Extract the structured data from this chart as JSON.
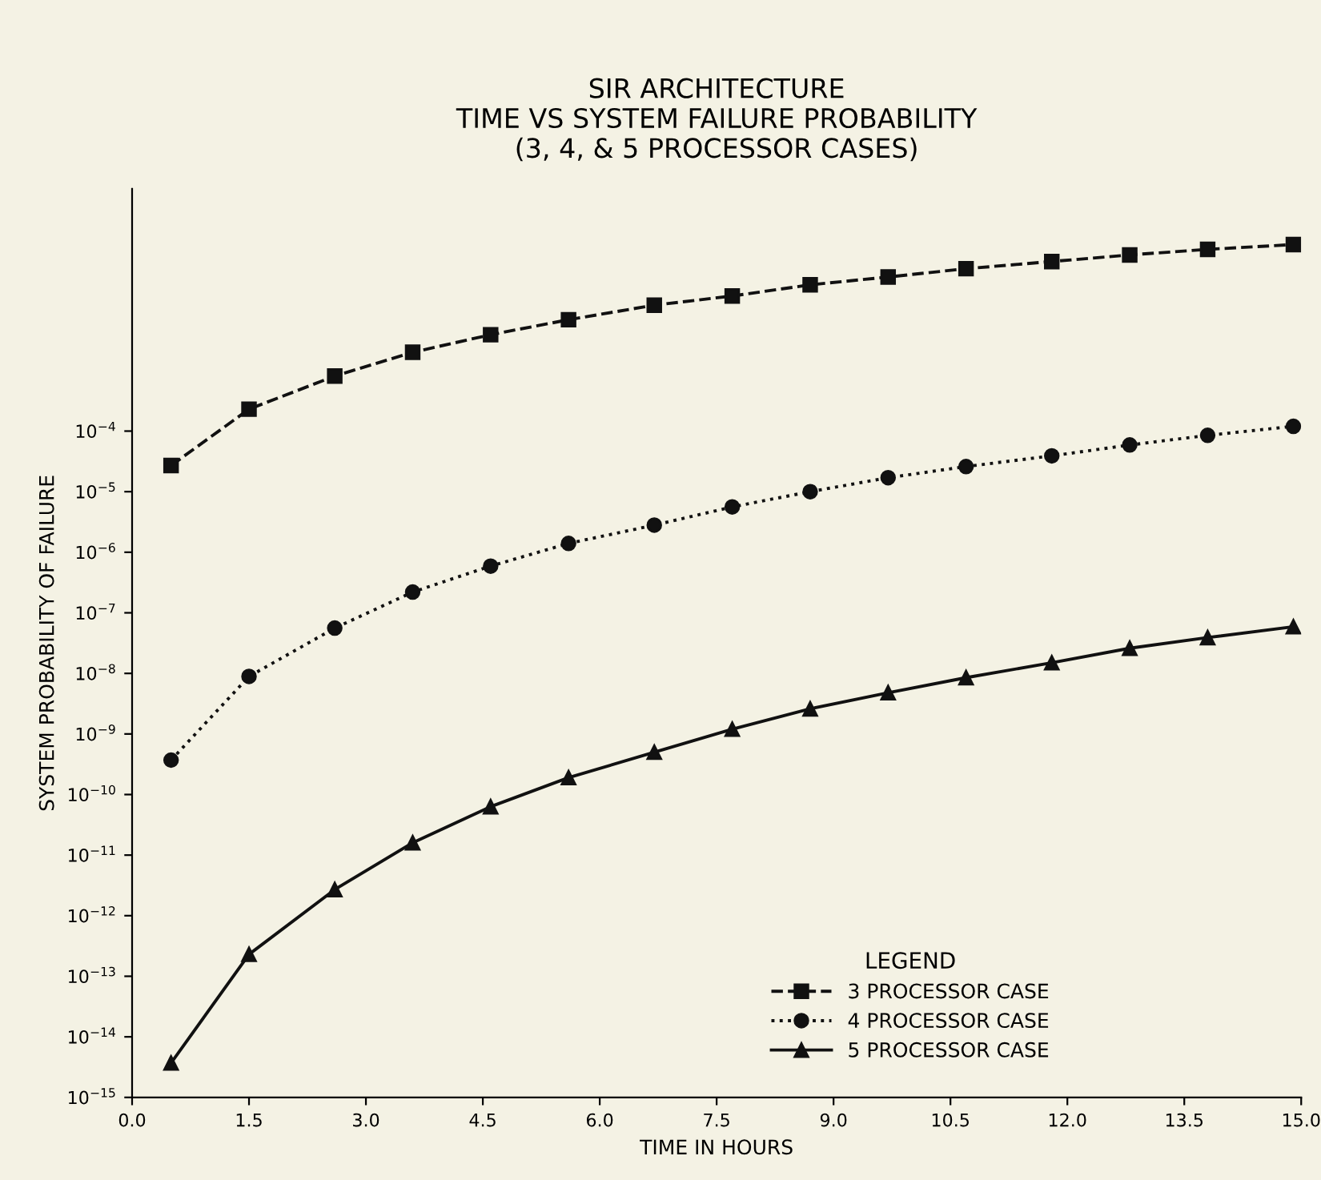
{
  "chart_data": {
    "type": "line",
    "title": "SIR ARCHITECTURE\nTIME VS SYSTEM FAILURE PROBABILITY\n(3, 4, & 5 PROCESSOR CASES)",
    "xlabel": "TIME IN HOURS",
    "ylabel": "SYSTEM PROBABILITY OF FAILURE",
    "legend_title": "LEGEND",
    "legend": "bottom right",
    "log": "y",
    "grid": false,
    "x": [
      0.5,
      1.5,
      2.6,
      3.6,
      4.6,
      5.6,
      6.7,
      7.7,
      8.7,
      9.7,
      10.7,
      11.8,
      12.8,
      13.8,
      14.9
    ],
    "xlim": [
      0,
      15
    ],
    "xticks": [
      {
        "value": 0,
        "label": "0.0"
      },
      1.5,
      {
        "value": 3,
        "label": "3.0"
      },
      4.5,
      {
        "value": 6,
        "label": "6.0"
      },
      7.5,
      {
        "value": 9,
        "label": "9.0"
      },
      10.5,
      {
        "value": 12,
        "label": "12.0"
      },
      13.5,
      {
        "value": 15,
        "label": "15.0"
      }
    ],
    "ylim": [
      1e-15,
      1
    ],
    "yticks": [
      {
        "value": 1e-15,
        "label": "10$^{−15}$"
      },
      {
        "value": 1e-14,
        "label": "10$^{−14}$"
      },
      {
        "value": 1e-13,
        "label": "10$^{−13}$"
      },
      {
        "value": 1e-12,
        "label": "10$^{−12}$"
      },
      {
        "value": 1e-11,
        "label": "10$^{−11}$"
      },
      {
        "value": 1e-10,
        "label": "10$^{−10}$"
      },
      {
        "value": 1e-09,
        "label": "10$^{−9}$"
      },
      {
        "value": 1e-08,
        "label": "10$^{−8}$"
      },
      {
        "value": 1e-07,
        "label": "10$^{−7}$"
      },
      {
        "value": 1e-06,
        "label": "10$^{−6}$"
      },
      {
        "value": 1e-05,
        "label": "10$^{−5}$"
      },
      {
        "value": 0.0001,
        "label": "10$^{−4}$"
      }
    ],
    "series": [
      {
        "name": "3 PROCESSOR CASE",
        "color": "#111111",
        "marker": "square",
        "line_style": "dashed",
        "values": [
          2.7e-05,
          0.00023,
          0.00081,
          0.002,
          0.0039,
          0.0069,
          0.012,
          0.017,
          0.026,
          0.035,
          0.048,
          0.063,
          0.081,
          0.1,
          0.12
        ]
      },
      {
        "name": "4 PROCESSOR CASE",
        "color": "#111111",
        "marker": "circle",
        "line_style": "dotted",
        "values": [
          3.7e-10,
          8.9e-09,
          5.6e-08,
          2.2e-07,
          5.9e-07,
          1.4e-06,
          2.8e-06,
          5.6e-06,
          1e-05,
          1.7e-05,
          2.6e-05,
          3.9e-05,
          5.9e-05,
          8.5e-05,
          0.00012
        ]
      },
      {
        "name": "5 PROCESSOR CASE",
        "color": "#111111",
        "marker": "triangle",
        "line_style": "solid",
        "values": [
          3.7e-15,
          2.3e-13,
          2.7e-12,
          1.6e-11,
          6.3e-11,
          1.9e-10,
          5e-10,
          1.2e-09,
          2.6e-09,
          4.8e-09,
          8.5e-09,
          1.5e-08,
          2.6e-08,
          3.9e-08,
          5.9e-08
        ]
      }
    ]
  }
}
